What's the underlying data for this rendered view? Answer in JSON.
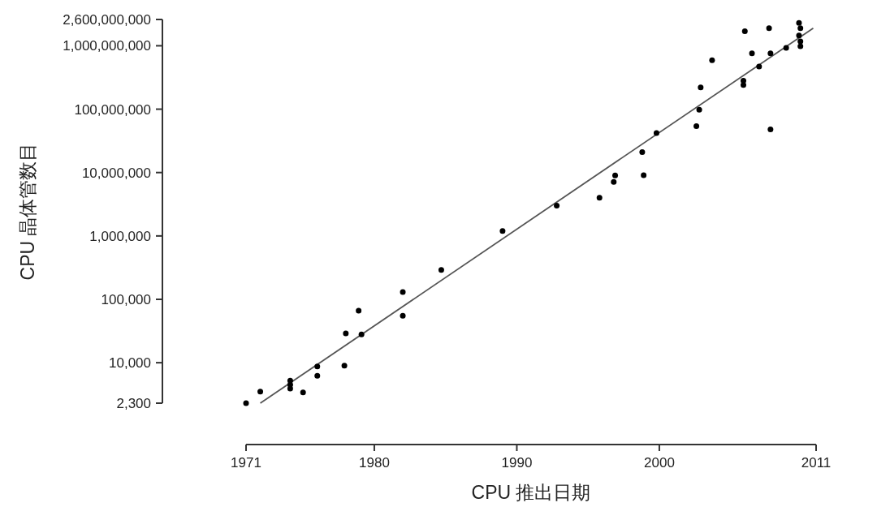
{
  "chart_data": {
    "type": "scatter",
    "xlabel": "CPU 推出日期",
    "ylabel": "CPU 晶体管数目",
    "log": "y",
    "xlim": [
      1971,
      2011
    ],
    "xticks": [
      1971,
      1980,
      1990,
      2000,
      2011
    ],
    "ylim": [
      2300,
      2600000000
    ],
    "yticks": [
      {
        "value": 2300,
        "label": "2,300"
      },
      {
        "value": 10000,
        "label": "10,000"
      },
      {
        "value": 100000,
        "label": "100,000"
      },
      {
        "value": 1000000,
        "label": "1,000,000"
      },
      {
        "value": 10000000,
        "label": "10,000,000"
      },
      {
        "value": 100000000,
        "label": "100,000,000"
      },
      {
        "value": 1000000000,
        "label": "1,000,000,000"
      },
      {
        "value": 2600000000,
        "label": "2,600,000,000"
      }
    ],
    "series": [
      {
        "type": "line",
        "color": "#555555",
        "x": [
          1972,
          2010.8
        ],
        "values": [
          2300,
          1900000000
        ]
      },
      {
        "marker": "circle",
        "color": "#000000",
        "x": [
          1971,
          1972,
          1974.1,
          1974.1,
          1974.1,
          1975,
          1976,
          1976,
          1977.9,
          1978,
          1979.1,
          1978.9,
          1982,
          1982,
          1984.7,
          1989,
          1992.8,
          1995.8,
          1996.8,
          1996.9,
          1998.8,
          1998.9,
          1999.8,
          2002.6,
          2002.8,
          2002.9,
          2003.7,
          2005.9,
          2005.9,
          2006,
          2006.5,
          2007,
          2007.7,
          2007.8,
          2007.8,
          2008.9,
          2009.8,
          2009.9,
          2009.8,
          2009.9,
          2009.9
        ],
        "values": [
          2300,
          3500,
          5200,
          4500,
          3900,
          3400,
          8700,
          6200,
          9000,
          29000,
          28000,
          66000,
          130000,
          55000,
          290000,
          1200000,
          3000000,
          4000000,
          7100000,
          9000000,
          21000000,
          9100000,
          42000000,
          54000000,
          98000000,
          220000000,
          590000000,
          280000000,
          240000000,
          1700000000,
          760000000,
          470000000,
          1900000000,
          760000000,
          48000000,
          930000000,
          2300000000,
          1900000000,
          1450000000,
          1170000000,
          980000000
        ]
      }
    ]
  }
}
